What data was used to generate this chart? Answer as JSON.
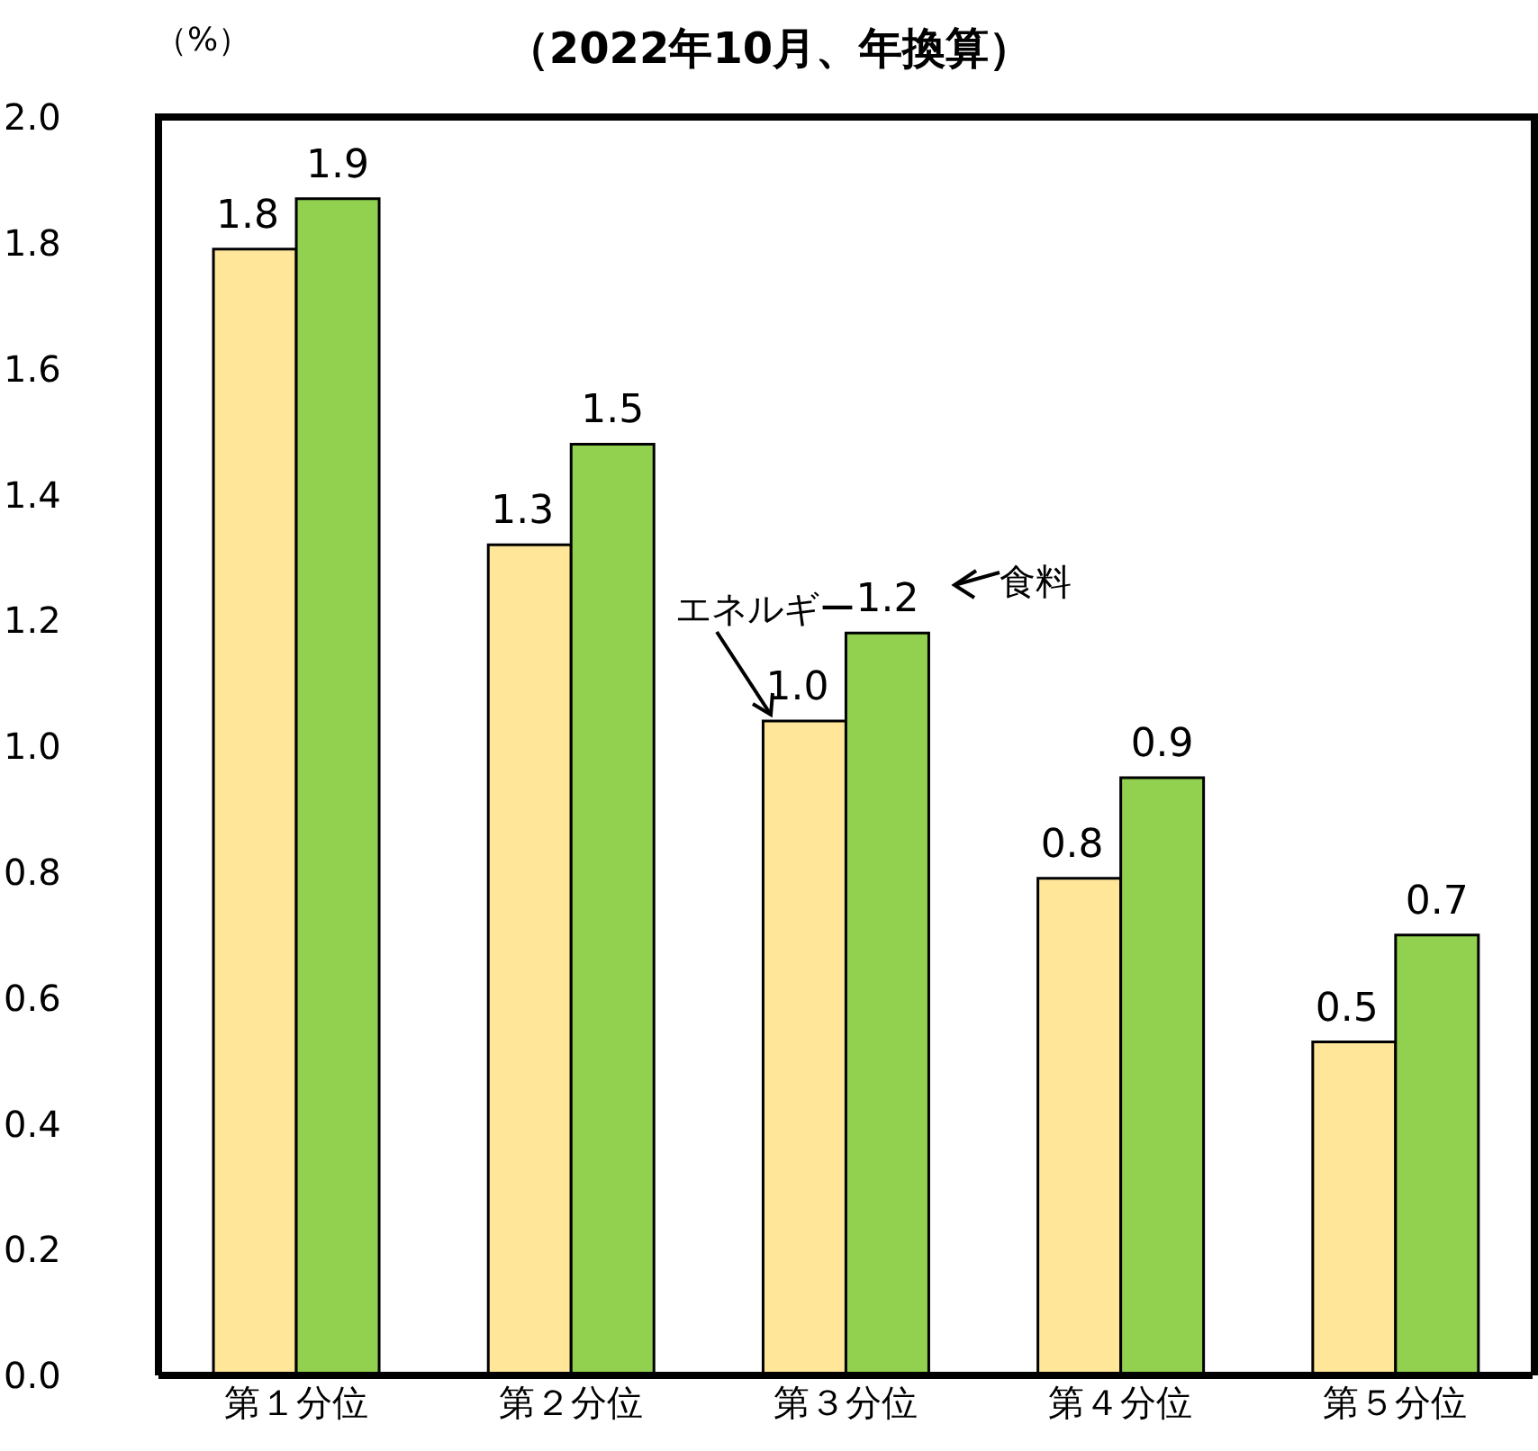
{
  "chart_data": {
    "type": "bar",
    "title": "（2022年10月、年換算）",
    "ylabel": "（%）",
    "categories": [
      "第１分位",
      "第２分位",
      "第３分位",
      "第４分位",
      "第５分位"
    ],
    "series": [
      {
        "name": "エネルギー",
        "color": "#ffe699",
        "values": [
          1.79,
          1.32,
          1.04,
          0.79,
          0.53
        ],
        "value_labels": [
          "1.8",
          "1.3",
          "1.0",
          "0.8",
          "0.5"
        ]
      },
      {
        "name": "食料",
        "color": "#92d050",
        "values": [
          1.87,
          1.48,
          1.18,
          0.95,
          0.7
        ],
        "value_labels": [
          "1.9",
          "1.5",
          "1.2",
          "0.9",
          "0.7"
        ]
      }
    ],
    "ylim": [
      0,
      2.0
    ],
    "yticks": [
      {
        "value": 0,
        "label": "0.0"
      },
      {
        "value": 0.2,
        "label": "0.2"
      },
      {
        "value": 0.4,
        "label": "0.4"
      },
      {
        "value": 0.6,
        "label": "0.6"
      },
      {
        "value": 0.8,
        "label": "0.8"
      },
      {
        "value": 1.0,
        "label": "1.0"
      },
      {
        "value": 1.2,
        "label": "1.2"
      },
      {
        "value": 1.4,
        "label": "1.4"
      },
      {
        "value": 1.6,
        "label": "1.6"
      },
      {
        "value": 1.8,
        "label": "1.8"
      },
      {
        "value": 2.0,
        "label": "2.0"
      }
    ],
    "grid": false
  }
}
